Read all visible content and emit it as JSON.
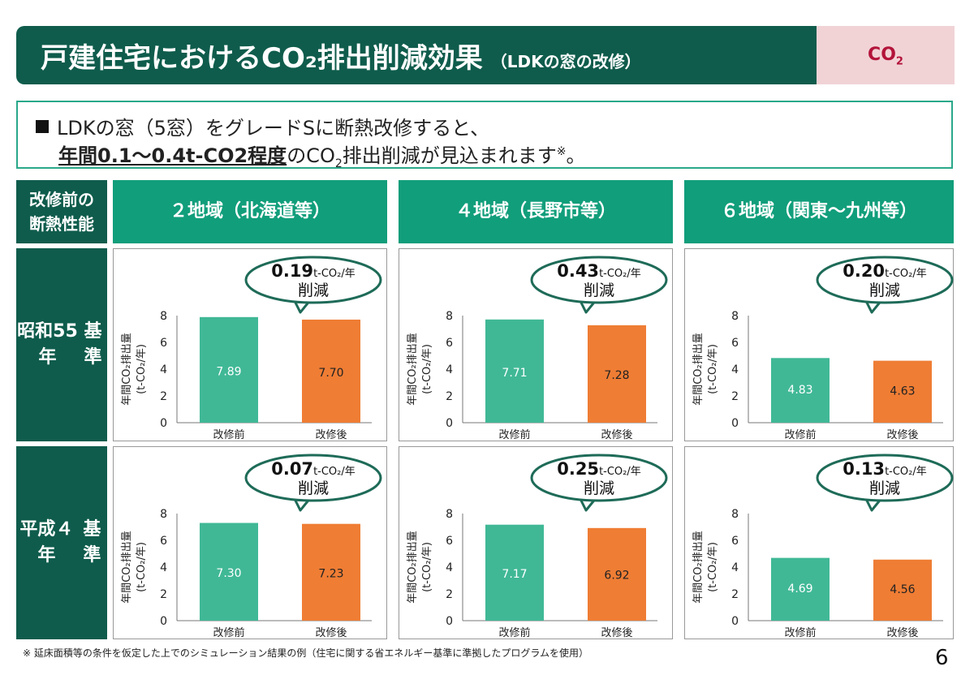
{
  "title": {
    "main": "戸建住宅におけるCO₂排出削減効果",
    "sub": "（LDKの窓の改修）"
  },
  "tag": {
    "text": "CO",
    "sub": "2"
  },
  "summary": {
    "line1": "LDKの窓（5窓）をグレードSに断熱改修すると、",
    "line2_emph": "年間0.1～0.4t-CO2程度",
    "line2_a": "のCO",
    "line2_sub": "2",
    "line2_b": "排出削減が見込まれます",
    "line2_mark": "※",
    "line2_end": "。"
  },
  "table": {
    "corner": "改修前の\n断熱性能",
    "columns": [
      "２地域（北海道等）",
      "４地域（長野市等）",
      "６地域（関東～九州等）"
    ],
    "rows": [
      "昭和55年\n基準",
      "平成４年\n基準"
    ]
  },
  "colors": {
    "before": "#40b896",
    "after": "#ef7d34",
    "dark": "#0f5c4c",
    "header": "#119e7b",
    "bubble_border": "#1e6b58"
  },
  "bubble": {
    "unit": "t-CO₂/年",
    "label": "削減"
  },
  "axis": {
    "ylabel_line1": "年間CO₂排出量",
    "ylabel_line2": "(t-CO₂/年)",
    "ticks": [
      "0",
      "2",
      "4",
      "6",
      "8"
    ]
  },
  "chart_data": [
    {
      "type": "bar",
      "region": "２地域（北海道等）",
      "standard": "昭和55年基準",
      "categories": [
        "改修前",
        "改修後"
      ],
      "values": [
        7.89,
        7.7
      ],
      "ylim": [
        0,
        8
      ],
      "reduction": "0.19",
      "xlabel": "",
      "ylabel": "年間CO₂排出量 (t-CO₂/年)"
    },
    {
      "type": "bar",
      "region": "４地域（長野市等）",
      "standard": "昭和55年基準",
      "categories": [
        "改修前",
        "改修後"
      ],
      "values": [
        7.71,
        7.28
      ],
      "ylim": [
        0,
        8
      ],
      "reduction": "0.43",
      "xlabel": "",
      "ylabel": "年間CO₂排出量 (t-CO₂/年)"
    },
    {
      "type": "bar",
      "region": "６地域（関東～九州等）",
      "standard": "昭和55年基準",
      "categories": [
        "改修前",
        "改修後"
      ],
      "values": [
        4.83,
        4.63
      ],
      "ylim": [
        0,
        8
      ],
      "reduction": "0.20",
      "xlabel": "",
      "ylabel": "年間CO₂排出量 (t-CO₂/年)"
    },
    {
      "type": "bar",
      "region": "２地域（北海道等）",
      "standard": "平成４年基準",
      "categories": [
        "改修前",
        "改修後"
      ],
      "values": [
        7.3,
        7.23
      ],
      "ylim": [
        0,
        8
      ],
      "reduction": "0.07",
      "xlabel": "",
      "ylabel": "年間CO₂排出量 (t-CO₂/年)"
    },
    {
      "type": "bar",
      "region": "４地域（長野市等）",
      "standard": "平成４年基準",
      "categories": [
        "改修前",
        "改修後"
      ],
      "values": [
        7.17,
        6.92
      ],
      "ylim": [
        0,
        8
      ],
      "reduction": "0.25",
      "xlabel": "",
      "ylabel": "年間CO₂排出量 (t-CO₂/年)"
    },
    {
      "type": "bar",
      "region": "６地域（関東～九州等）",
      "standard": "平成４年基準",
      "categories": [
        "改修前",
        "改修後"
      ],
      "values": [
        4.69,
        4.56
      ],
      "ylim": [
        0,
        8
      ],
      "reduction": "0.13",
      "xlabel": "",
      "ylabel": "年間CO₂排出量 (t-CO₂/年)"
    }
  ],
  "footnote": "※ 延床面積等の条件を仮定した上でのシミュレーション結果の例（住宅に関する省エネルギー基準に準拠したプログラムを使用）",
  "page_number": "6"
}
